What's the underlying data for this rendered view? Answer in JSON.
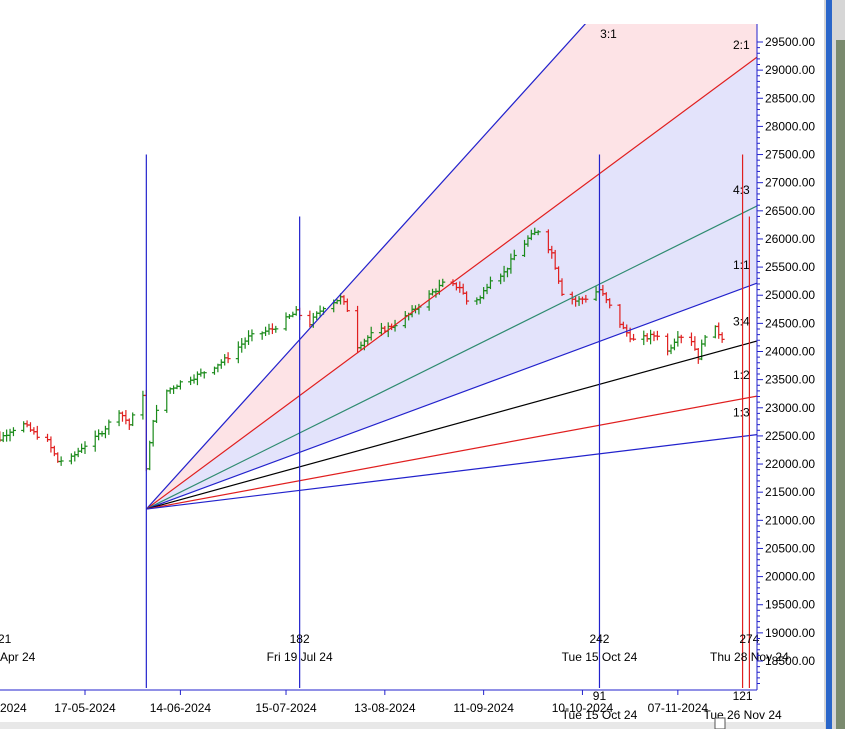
{
  "colors": {
    "background": "#ffffff",
    "fan_blue": "#2222cc",
    "fan_red": "#e01f1f",
    "fan_green": "#2e8b70",
    "fan_black": "#000000",
    "fill_pink": "#fde3e6",
    "fill_lavender": "#e3e3fb",
    "bar_up": "#1a8a1a",
    "bar_down": "#e01f1f",
    "vline_blue": "#2222cc",
    "vline_red": "#e01f1f",
    "axis": "#2222cc"
  },
  "chart_data": {
    "type": "line",
    "title": "",
    "ylim": [
      18200,
      29900
    ],
    "y_ticks": [
      "29500.00",
      "29000.00",
      "28500.00",
      "28000.00",
      "27500.00",
      "27000.00",
      "26500.00",
      "26000.00",
      "25500.00",
      "25000.00",
      "24500.00",
      "24000.00",
      "23500.00",
      "23000.00",
      "22500.00",
      "22000.00",
      "21500.00",
      "21000.00",
      "20500.00",
      "20000.00",
      "19500.00",
      "19000.00",
      "18500.00"
    ],
    "x_ticks": [
      {
        "label": "2024",
        "date": "2024-04-19"
      },
      {
        "label": "17-05-2024",
        "date": "2024-05-17"
      },
      {
        "label": "14-06-2024",
        "date": "2024-06-14"
      },
      {
        "label": "15-07-2024",
        "date": "2024-07-15"
      },
      {
        "label": "13-08-2024",
        "date": "2024-08-13"
      },
      {
        "label": "11-09-2024",
        "date": "2024-09-11"
      },
      {
        "label": "10-10-2024",
        "date": "2024-10-10"
      },
      {
        "label": "07-11-2024",
        "date": "2024-11-07"
      }
    ],
    "gann_fan": {
      "origin_date": "2024-06-04",
      "origin_price": 21200,
      "lines": [
        {
          "label": "3:1",
          "end_date": "2024-10-12",
          "end_price": 29900,
          "color": "#2222cc"
        },
        {
          "label": "2:1",
          "end_date": "2024-12-04",
          "end_price": 29400,
          "color": "#e01f1f"
        },
        {
          "label": "4:3",
          "end_date": "2024-12-04",
          "end_price": 26700,
          "color": "#2e8b70"
        },
        {
          "label": "1:1",
          "end_date": "2024-12-04",
          "end_price": 25300,
          "color": "#2222cc"
        },
        {
          "label": "3:4",
          "end_date": "2024-12-04",
          "end_price": 24250,
          "color": "#000000"
        },
        {
          "label": "1:2",
          "end_date": "2024-12-04",
          "end_price": 23250,
          "color": "#e01f1f"
        },
        {
          "label": "1:3",
          "end_date": "2024-12-04",
          "end_price": 22550,
          "color": "#2222cc"
        }
      ]
    },
    "vertical_markers": [
      {
        "date": "2024-06-04",
        "color": "#2222cc",
        "top_price": 27500,
        "count": "",
        "date_label": ""
      },
      {
        "date": "2024-07-19",
        "color": "#2222cc",
        "top_price": 26400,
        "count": "182",
        "date_label": "Fri 19 Jul 24"
      },
      {
        "date": "2024-10-15",
        "color": "#2222cc",
        "top_price": 27500,
        "count": "242",
        "date_label": "Tue 15 Oct 24"
      },
      {
        "date": "2024-11-26",
        "color": "#e01f1f",
        "top_price": 27500,
        "count": "",
        "date_label": ""
      },
      {
        "date": "2024-11-28",
        "color": "#e01f1f",
        "top_price": 26400,
        "count": "274",
        "date_label": "Thu 28 Nov 24"
      }
    ],
    "left_marker": {
      "count": "21",
      "date_label": "Apr 24"
    },
    "bottom_markers": [
      {
        "date": "2024-10-15",
        "count": "91",
        "date_label": "Tue 15 Oct 24"
      },
      {
        "date": "2024-11-26",
        "count": "121",
        "date_label": "Tue 26 Nov 24"
      }
    ],
    "price_path": [
      [
        "2024-04-15",
        22400
      ],
      [
        "2024-04-18",
        22500
      ],
      [
        "2024-04-22",
        22450
      ],
      [
        "2024-04-25",
        22600
      ],
      [
        "2024-04-29",
        22700
      ],
      [
        "2024-05-02",
        22550
      ],
      [
        "2024-05-06",
        22400
      ],
      [
        "2024-05-09",
        22050
      ],
      [
        "2024-05-13",
        22100
      ],
      [
        "2024-05-16",
        22300
      ],
      [
        "2024-05-20",
        22450
      ],
      [
        "2024-05-23",
        22650
      ],
      [
        "2024-05-27",
        22950
      ],
      [
        "2024-05-30",
        22700
      ],
      [
        "2024-06-03",
        23250
      ],
      [
        "2024-06-04",
        21900
      ],
      [
        "2024-06-06",
        22800
      ],
      [
        "2024-06-10",
        23300
      ],
      [
        "2024-06-14",
        23450
      ],
      [
        "2024-06-20",
        23600
      ],
      [
        "2024-06-27",
        23850
      ],
      [
        "2024-07-04",
        24250
      ],
      [
        "2024-07-11",
        24400
      ],
      [
        "2024-07-18",
        24700
      ],
      [
        "2024-07-22",
        24500
      ],
      [
        "2024-07-26",
        24800
      ],
      [
        "2024-07-31",
        24950
      ],
      [
        "2024-08-02",
        24750
      ],
      [
        "2024-08-05",
        24100
      ],
      [
        "2024-08-09",
        24300
      ],
      [
        "2024-08-15",
        24450
      ],
      [
        "2024-08-20",
        24650
      ],
      [
        "2024-08-26",
        25000
      ],
      [
        "2024-08-30",
        25200
      ],
      [
        "2024-09-04",
        25150
      ],
      [
        "2024-09-06",
        24900
      ],
      [
        "2024-09-10",
        24950
      ],
      [
        "2024-09-13",
        25300
      ],
      [
        "2024-09-17",
        25400
      ],
      [
        "2024-09-20",
        25700
      ],
      [
        "2024-09-24",
        26000
      ],
      [
        "2024-09-27",
        26150
      ],
      [
        "2024-10-01",
        25750
      ],
      [
        "2024-10-04",
        25050
      ],
      [
        "2024-10-08",
        24900
      ],
      [
        "2024-10-11",
        24950
      ],
      [
        "2024-10-15",
        25100
      ],
      [
        "2024-10-18",
        24800
      ],
      [
        "2024-10-22",
        24400
      ],
      [
        "2024-10-25",
        24200
      ],
      [
        "2024-10-29",
        24250
      ],
      [
        "2024-11-01",
        24300
      ],
      [
        "2024-11-04",
        24000
      ],
      [
        "2024-11-07",
        24300
      ],
      [
        "2024-11-11",
        24200
      ],
      [
        "2024-11-13",
        23900
      ],
      [
        "2024-11-15",
        24300
      ],
      [
        "2024-11-18",
        24400
      ],
      [
        "2024-11-20",
        24250
      ]
    ]
  }
}
